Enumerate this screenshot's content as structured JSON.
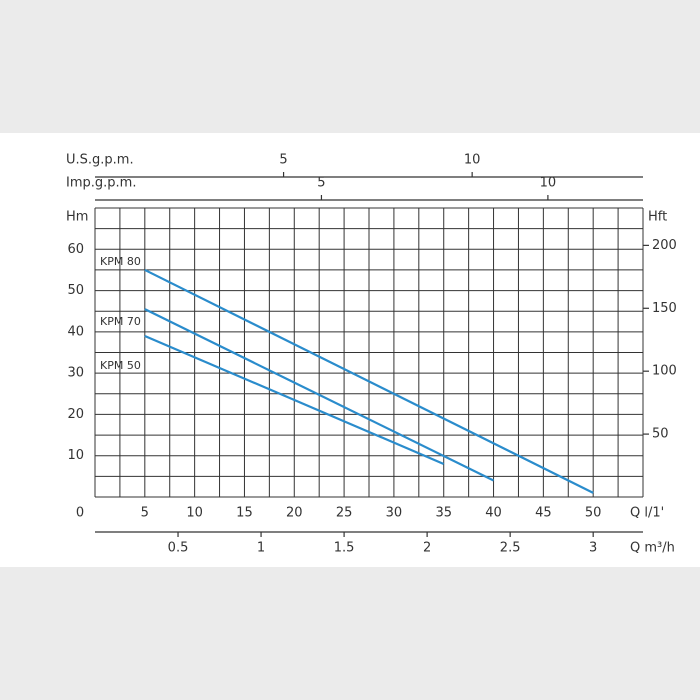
{
  "chart_data": {
    "type": "line",
    "x_label": "Q l/1'",
    "xlim": [
      0,
      55
    ],
    "xticks": [
      0,
      5,
      10,
      15,
      20,
      25,
      30,
      35,
      40,
      45,
      50
    ],
    "y_label": "Hm",
    "ylim": [
      0,
      70
    ],
    "yticks": [
      10,
      20,
      30,
      40,
      50,
      60
    ],
    "y2_label": "Hft",
    "y2lim": [
      0,
      229.7
    ],
    "y2ticks": [
      50,
      100,
      150,
      200
    ],
    "top_axes": [
      {
        "label": "U.S.g.p.m.",
        "lim": [
          0,
          14.53
        ],
        "ticks": [
          5,
          10
        ]
      },
      {
        "label": "Imp.g.p.m.",
        "lim": [
          0,
          12.1
        ],
        "ticks": [
          5,
          10
        ]
      }
    ],
    "bottom_axis": {
      "label": "Q m³/h",
      "lim": [
        0,
        3.3
      ],
      "ticks": [
        0.5,
        1,
        1.5,
        2,
        2.5,
        3
      ]
    },
    "grid": {
      "x_step": 2.5,
      "y_step": 5
    },
    "series": [
      {
        "name": "KPM 80",
        "color": "#2a8ccc",
        "x": [
          5,
          50
        ],
        "values": [
          55,
          1
        ]
      },
      {
        "name": "KPM 70",
        "color": "#2a8ccc",
        "x": [
          5,
          40
        ],
        "values": [
          45.5,
          4
        ]
      },
      {
        "name": "KPM 50",
        "color": "#2a8ccc",
        "x": [
          5,
          35
        ],
        "values": [
          39,
          8
        ]
      }
    ]
  }
}
